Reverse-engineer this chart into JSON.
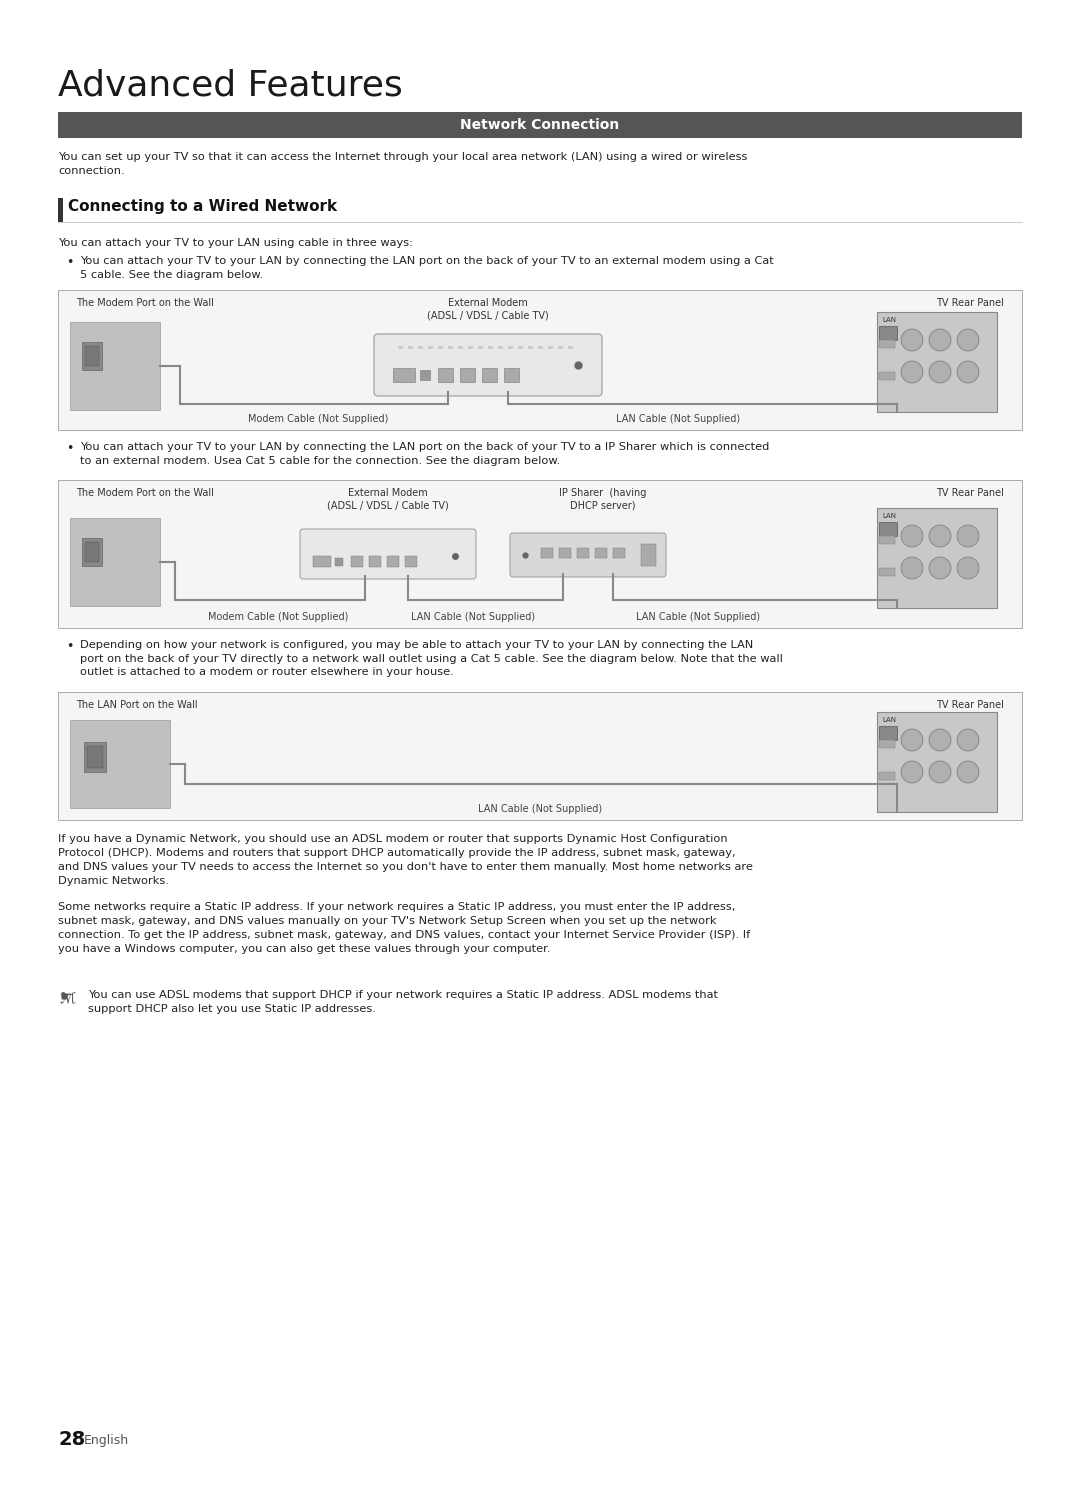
{
  "page_bg": "#ffffff",
  "title": "Advanced Features",
  "title_fontsize": 26,
  "section_bar_color": "#555555",
  "section_text": "Network Connection",
  "section_text_color": "#ffffff",
  "section_fontsize": 10,
  "subsection_title": "Connecting to a Wired Network",
  "body_fontsize": 8.2,
  "body_color": "#222222",
  "intro_text": "You can set up your TV so that it can access the Internet through your local area network (LAN) using a wired or wireless\nconnection.",
  "ways_text": "You can attach your TV to your LAN using cable in three ways:",
  "bullet1": "You can attach your TV to your LAN by connecting the LAN port on the back of your TV to an external modem using a Cat\n5 cable. See the diagram below.",
  "bullet2": "You can attach your TV to your LAN by connecting the LAN port on the back of your TV to a IP Sharer which is connected\nto an external modem. Usea Cat 5 cable for the connection. See the diagram below.",
  "bullet3": "Depending on how your network is configured, you may be able to attach your TV to your LAN by connecting the LAN\nport on the back of your TV directly to a network wall outlet using a Cat 5 cable. See the diagram below. Note that the wall\noutlet is attached to a modem or router elsewhere in your house.",
  "diag1_label_left": "The Modem Port on the Wall",
  "diag1_label_mid": "External Modem\n(ADSL / VDSL / Cable TV)",
  "diag1_label_right": "TV Rear Panel",
  "diag1_cable1": "Modem Cable (Not Supplied)",
  "diag1_cable2": "LAN Cable (Not Supplied)",
  "diag2_label_left": "The Modem Port on the Wall",
  "diag2_label_mid1": "External Modem\n(ADSL / VDSL / Cable TV)",
  "diag2_label_mid2": "IP Sharer  (having\nDHCP server)",
  "diag2_label_right": "TV Rear Panel",
  "diag2_cable1": "Modem Cable (Not Supplied)",
  "diag2_cable2": "LAN Cable (Not Supplied)",
  "diag2_cable3": "LAN Cable (Not Supplied)",
  "diag3_label_left": "The LAN Port on the Wall",
  "diag3_label_right": "TV Rear Panel",
  "diag3_cable": "LAN Cable (Not Supplied)",
  "bottom_text1": "If you have a Dynamic Network, you should use an ADSL modem or router that supports Dynamic Host Configuration\nProtocol (DHCP). Modems and routers that support DHCP automatically provide the IP address, subnet mask, gateway,\nand DNS values your TV needs to access the Internet so you don't have to enter them manually. Most home networks are\nDynamic Networks.",
  "bottom_text2": "Some networks require a Static IP address. If your network requires a Static IP address, you must enter the IP address,\nsubnet mask, gateway, and DNS values manually on your TV's Network Setup Screen when you set up the network\nconnection. To get the IP address, subnet mask, gateway, and DNS values, contact your Internet Service Provider (ISP). If\nyou have a Windows computer, you can also get these values through your computer.",
  "note_text": "You can use ADSL modems that support DHCP if your network requires a Static IP address. ADSL modems that\nsupport DHCP also let you use Static IP addresses.",
  "page_number": "28",
  "page_lang": "English",
  "diagram_bg": "#f5f5f5",
  "diagram_border": "#aaaaaa",
  "wall_color": "#bbbbbb",
  "wall_inner": "#999999",
  "modem_color": "#dddddd",
  "tv_color": "#cccccc",
  "port_color": "#aaaaaa",
  "cable_color": "#888888",
  "label_color": "#333333",
  "cable_label_color": "#444444"
}
